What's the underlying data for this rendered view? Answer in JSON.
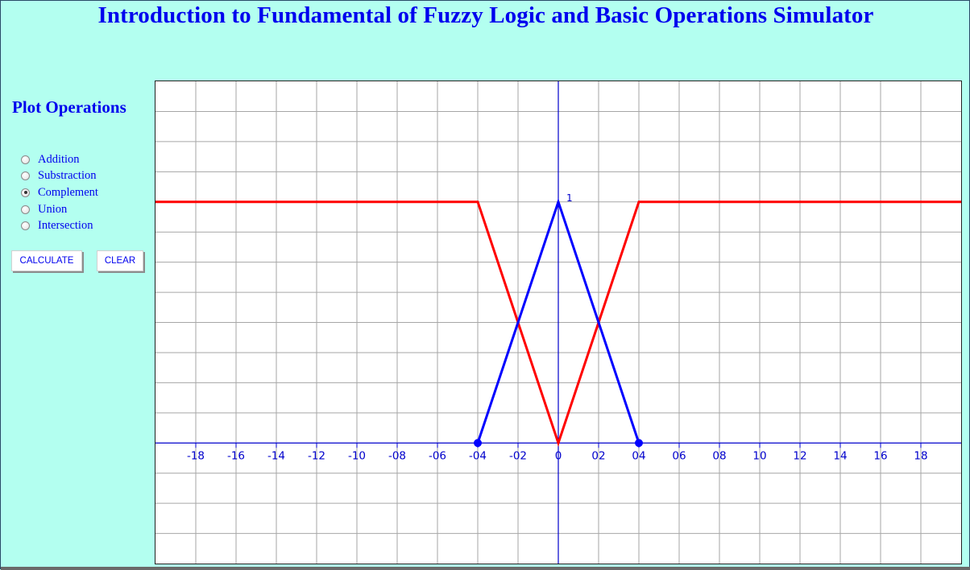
{
  "title": "Introduction to Fundamental of Fuzzy Logic and Basic Operations Simulator",
  "panel": {
    "heading": "Plot Operations",
    "operations": [
      {
        "label": "Addition",
        "selected": false
      },
      {
        "label": "Substraction",
        "selected": false
      },
      {
        "label": "Complement",
        "selected": true
      },
      {
        "label": "Union",
        "selected": false
      },
      {
        "label": "Intersection",
        "selected": false
      }
    ],
    "calculate_label": "CALCULATE",
    "clear_label": "CLEAR"
  },
  "chart_data": {
    "type": "line",
    "x_tick_labels": [
      "-18",
      "-16",
      "-14",
      "-12",
      "-10",
      "-08",
      "-06",
      "-04",
      "-02",
      "0",
      "02",
      "04",
      "06",
      "08",
      "10",
      "12",
      "14",
      "16",
      "18"
    ],
    "x_ticks": [
      -18,
      -16,
      -14,
      -12,
      -10,
      -8,
      -6,
      -4,
      -2,
      0,
      2,
      4,
      6,
      8,
      10,
      12,
      14,
      16,
      18
    ],
    "y_tick_label": "1",
    "xlim": [
      -20,
      20
    ],
    "ylim": [
      -0.5,
      1.5
    ],
    "grid": true,
    "series": [
      {
        "color": "#0000ff",
        "x": [
          -4,
          0,
          4
        ],
        "y": [
          0,
          1,
          0
        ],
        "endpoint_markers": true
      },
      {
        "color": "#ff0000",
        "x": [
          -20,
          -4,
          0,
          4,
          20
        ],
        "y": [
          1,
          1,
          0,
          1,
          1
        ]
      }
    ]
  },
  "colors": {
    "background": "#b3fff0",
    "text": "#0000ee",
    "grid": "#a6a6a6",
    "axis": "#0000cc"
  }
}
